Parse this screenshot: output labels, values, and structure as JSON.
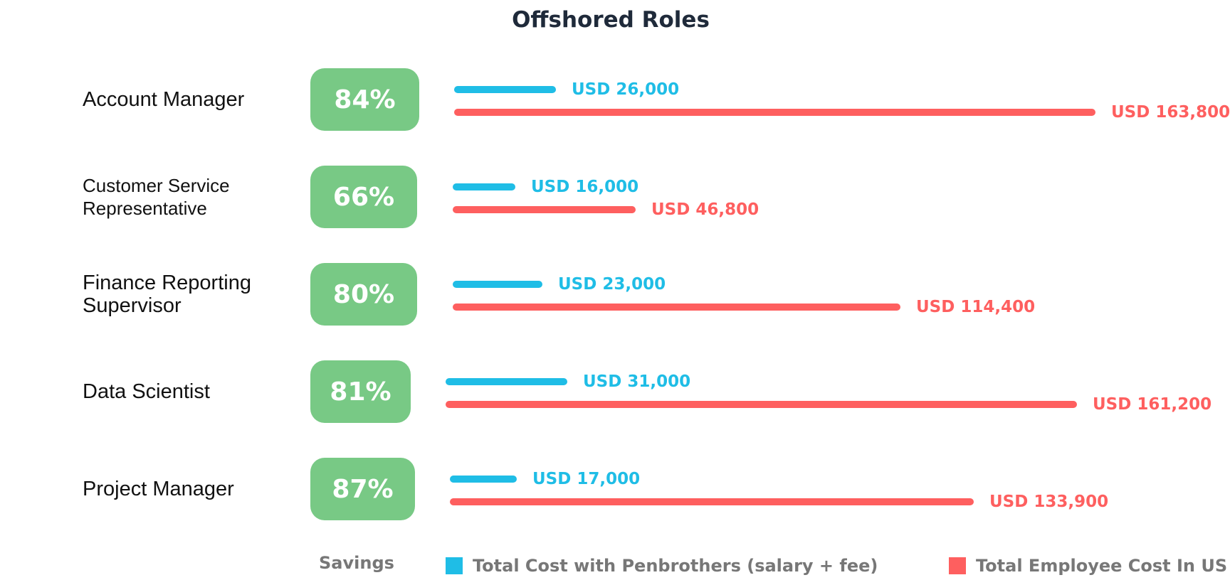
{
  "chart_data": {
    "type": "bar",
    "title": "Offshored Roles",
    "categories": [
      "Account Manager",
      "Customer Service Representative",
      "Finance Reporting Supervisor",
      "Data Scientist",
      "Project Manager"
    ],
    "savings": [
      "84%",
      "66%",
      "80%",
      "81%",
      "87%"
    ],
    "series": [
      {
        "name": "Total Cost with Penbrothers (salary + fee)",
        "color": "#1fbde6",
        "values": [
          26000,
          16000,
          23000,
          31000,
          17000
        ],
        "labels": [
          "USD 26,000",
          "USD 16,000",
          "USD 23,000",
          "USD 31,000",
          "USD 17,000"
        ]
      },
      {
        "name": "Total Employee Cost In US",
        "color": "#fe5f5f",
        "values": [
          163800,
          46800,
          114400,
          161200,
          133900
        ],
        "labels": [
          "USD 163,800",
          "USD 46,800",
          "USD 114,400",
          "USD 161,200",
          "USD 133,900"
        ]
      }
    ],
    "legend": {
      "savings_label": "Savings",
      "position": "bottom"
    },
    "savings_color": "#78c985"
  }
}
